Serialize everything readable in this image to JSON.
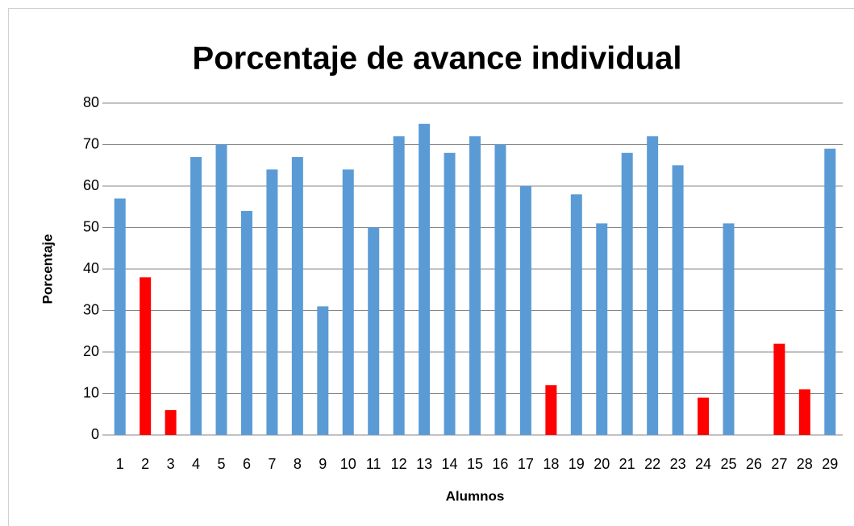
{
  "chart_data": {
    "type": "bar",
    "title": "Porcentaje de avance individual",
    "x_label": "Alumnos",
    "y_label": "Porcentaje",
    "categories": [
      "1",
      "2",
      "3",
      "4",
      "5",
      "6",
      "7",
      "8",
      "9",
      "10",
      "11",
      "12",
      "13",
      "14",
      "15",
      "16",
      "17",
      "18",
      "19",
      "20",
      "21",
      "22",
      "23",
      "24",
      "25",
      "26",
      "27",
      "28",
      "29"
    ],
    "values": [
      57,
      38,
      6,
      67,
      70,
      54,
      64,
      67,
      31,
      64,
      50,
      72,
      75,
      68,
      72,
      70,
      60,
      12,
      58,
      51,
      68,
      72,
      65,
      9,
      51,
      0,
      22,
      11,
      69
    ],
    "colors": [
      "#5b9bd5",
      "#ff0000",
      "#ff0000",
      "#5b9bd5",
      "#5b9bd5",
      "#5b9bd5",
      "#5b9bd5",
      "#5b9bd5",
      "#5b9bd5",
      "#5b9bd5",
      "#5b9bd5",
      "#5b9bd5",
      "#5b9bd5",
      "#5b9bd5",
      "#5b9bd5",
      "#5b9bd5",
      "#5b9bd5",
      "#ff0000",
      "#5b9bd5",
      "#5b9bd5",
      "#5b9bd5",
      "#5b9bd5",
      "#5b9bd5",
      "#ff0000",
      "#5b9bd5",
      "#5b9bd5",
      "#ff0000",
      "#ff0000",
      "#5b9bd5"
    ],
    "ylim": [
      0,
      80
    ],
    "yticks": [
      0,
      10,
      20,
      30,
      40,
      50,
      60,
      70,
      80
    ],
    "grid": true
  }
}
